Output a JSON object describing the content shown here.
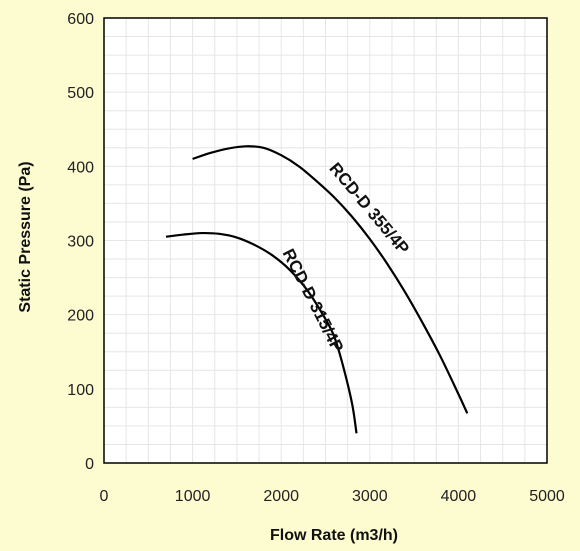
{
  "colors": {
    "page_background": "#fdfbd0",
    "plot_background": "#ffffff",
    "grid": "#e6e6e6",
    "axis": "#000000",
    "curve": "#000000"
  },
  "chart_data": {
    "type": "line",
    "title": "",
    "xlabel": "Flow Rate (m3/h)",
    "ylabel": "Static Pressure (Pa)",
    "xlim": [
      0,
      5000
    ],
    "ylim": [
      0,
      600
    ],
    "xticks": [
      0,
      1000,
      2000,
      3000,
      4000,
      5000
    ],
    "yticks": [
      0,
      100,
      200,
      300,
      400,
      500,
      600
    ],
    "grid": true,
    "legend": "none",
    "series": [
      {
        "name": "RCD-D 355/4P",
        "points": [
          [
            1000,
            410
          ],
          [
            1200,
            418
          ],
          [
            1400,
            424
          ],
          [
            1600,
            427
          ],
          [
            1800,
            425
          ],
          [
            2000,
            415
          ],
          [
            2200,
            400
          ],
          [
            2400,
            380
          ],
          [
            2600,
            358
          ],
          [
            2800,
            332
          ],
          [
            3000,
            302
          ],
          [
            3200,
            268
          ],
          [
            3400,
            230
          ],
          [
            3600,
            188
          ],
          [
            3800,
            143
          ],
          [
            4000,
            93
          ],
          [
            4100,
            67
          ]
        ]
      },
      {
        "name": "RCD-D 315/4P",
        "points": [
          [
            700,
            305
          ],
          [
            900,
            308
          ],
          [
            1100,
            310
          ],
          [
            1300,
            309
          ],
          [
            1500,
            304
          ],
          [
            1700,
            294
          ],
          [
            1900,
            280
          ],
          [
            2100,
            260
          ],
          [
            2300,
            232
          ],
          [
            2500,
            194
          ],
          [
            2600,
            170
          ],
          [
            2700,
            130
          ],
          [
            2800,
            80
          ],
          [
            2850,
            40
          ]
        ]
      }
    ]
  }
}
